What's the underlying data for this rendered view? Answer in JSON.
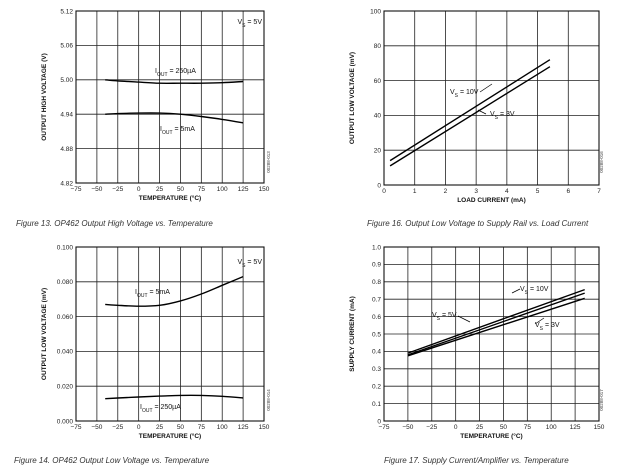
{
  "chart_data": [
    {
      "type": "line",
      "title": "Figure 13. OP462 Output High Voltage vs. Temperature",
      "xlabel": "TEMPERATURE (°C)",
      "ylabel": "OUTPUT HIGH VOLTAGE (V)",
      "xlim": [
        -75,
        150
      ],
      "ylim": [
        4.82,
        5.12
      ],
      "xticks": [
        -75,
        -50,
        -25,
        0,
        25,
        50,
        75,
        100,
        125,
        150
      ],
      "yticks": [
        4.82,
        4.88,
        4.94,
        5.0,
        5.06,
        5.12
      ],
      "xtick_labels": [
        "−75",
        "−50",
        "−25",
        "0",
        "25",
        "50",
        "75",
        "100",
        "125",
        "150"
      ],
      "ytick_labels": [
        "4.82",
        "4.88",
        "4.94",
        "5.00",
        "5.06",
        "5.12"
      ],
      "condition": "VS = 5V",
      "code": "00288-013",
      "series": [
        {
          "name": "IOUT = 250µA",
          "label": "IOUT = 250µA",
          "x": [
            -40,
            -25,
            0,
            25,
            50,
            75,
            100,
            125
          ],
          "y": [
            5.0,
            4.998,
            4.996,
            4.994,
            4.994,
            4.994,
            4.995,
            4.997
          ]
        },
        {
          "name": "IOUT = 5mA",
          "label": "IOUT = 5mA",
          "x": [
            -40,
            -25,
            0,
            25,
            50,
            75,
            100,
            125
          ],
          "y": [
            4.94,
            4.941,
            4.942,
            4.942,
            4.94,
            4.936,
            4.931,
            4.925
          ]
        }
      ]
    },
    {
      "type": "line",
      "title": "Figure 16. Output Low Voltage to Supply Rail vs. Load Current",
      "xlabel": "LOAD CURRENT (mA)",
      "ylabel": "OUTPUT LOW VOLTAGE (mV)",
      "xlim": [
        0,
        7
      ],
      "ylim": [
        0,
        100
      ],
      "xticks": [
        0,
        1,
        2,
        3,
        4,
        5,
        6,
        7
      ],
      "yticks": [
        0,
        20,
        40,
        60,
        80,
        100
      ],
      "xtick_labels": [
        "0",
        "1",
        "2",
        "3",
        "4",
        "5",
        "6",
        "7"
      ],
      "ytick_labels": [
        "0",
        "20",
        "40",
        "60",
        "80",
        "100"
      ],
      "code": "00288-016",
      "series": [
        {
          "name": "VS = 10V",
          "label": "VS = 10V",
          "x": [
            0.2,
            5.4
          ],
          "y": [
            14,
            72
          ]
        },
        {
          "name": "VS = 3V",
          "label": "VS = 3V",
          "x": [
            0.2,
            5.4
          ],
          "y": [
            11,
            68
          ]
        }
      ]
    },
    {
      "type": "line",
      "title": "Figure 14. OP462 Output Low Voltage vs. Temperature",
      "xlabel": "TEMPERATURE (°C)",
      "ylabel": "OUTPUT LOW VOLTAGE (mV)",
      "xlim": [
        -75,
        150
      ],
      "ylim": [
        0,
        0.1
      ],
      "xticks": [
        -75,
        -50,
        -25,
        0,
        25,
        50,
        75,
        100,
        125,
        150
      ],
      "yticks": [
        0,
        0.02,
        0.04,
        0.06,
        0.08,
        0.1
      ],
      "xtick_labels": [
        "−75",
        "−50",
        "−25",
        "0",
        "25",
        "50",
        "75",
        "100",
        "125",
        "150"
      ],
      "ytick_labels": [
        "0.000",
        "0.020",
        "0.040",
        "0.060",
        "0.080",
        "0.100"
      ],
      "condition": "VS = 5V",
      "code": "00288-014",
      "series": [
        {
          "name": "IOUT = 5mA",
          "label": "IOUT = 5mA",
          "x": [
            -40,
            -25,
            0,
            25,
            50,
            75,
            100,
            125
          ],
          "y": [
            0.067,
            0.0665,
            0.066,
            0.0665,
            0.069,
            0.073,
            0.078,
            0.083
          ]
        },
        {
          "name": "IOUT = 250µA",
          "label": "IOUT = 250µA",
          "x": [
            -40,
            -25,
            0,
            25,
            50,
            75,
            100,
            125
          ],
          "y": [
            0.0128,
            0.0132,
            0.0138,
            0.0143,
            0.0147,
            0.0147,
            0.0142,
            0.0132
          ]
        }
      ]
    },
    {
      "type": "line",
      "title": "Figure 17. Supply Current/Amplifier vs. Temperature",
      "xlabel": "TEMPERATURE (°C)",
      "ylabel": "SUPPLY CURRENT (mA)",
      "xlim": [
        -75,
        150
      ],
      "ylim": [
        0,
        1.0
      ],
      "xticks": [
        -75,
        -50,
        -25,
        0,
        25,
        50,
        75,
        100,
        125,
        150
      ],
      "yticks": [
        0,
        0.1,
        0.2,
        0.3,
        0.4,
        0.5,
        0.6,
        0.7,
        0.8,
        0.9,
        1.0
      ],
      "xtick_labels": [
        "−75",
        "−50",
        "−25",
        "0",
        "25",
        "50",
        "75",
        "100",
        "125",
        "150"
      ],
      "ytick_labels": [
        "0",
        "0.1",
        "0.2",
        "0.3",
        "0.4",
        "0.5",
        "0.6",
        "0.7",
        "0.8",
        "0.9",
        "1.0"
      ],
      "code": "00288-017",
      "series": [
        {
          "name": "VS = 10V",
          "label": "VS = 10V",
          "x": [
            -50,
            135
          ],
          "y": [
            0.39,
            0.755
          ]
        },
        {
          "name": "VS = 5V",
          "label": "VS = 5V",
          "x": [
            -50,
            135
          ],
          "y": [
            0.38,
            0.735
          ]
        },
        {
          "name": "VS = 3V",
          "label": "VS = 3V",
          "x": [
            -50,
            135
          ],
          "y": [
            0.375,
            0.705
          ]
        }
      ]
    }
  ]
}
